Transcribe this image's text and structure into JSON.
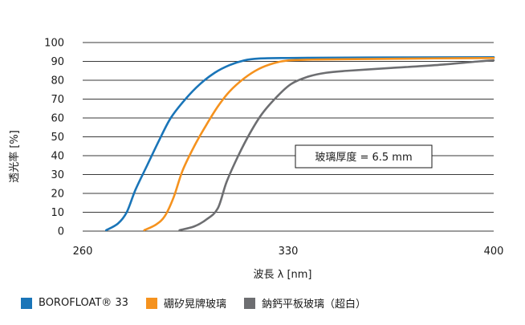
{
  "chart_data": {
    "type": "line",
    "xlabel": "波長 λ [nm]",
    "ylabel": "透光率 [%]",
    "xlim": [
      260,
      400
    ],
    "ylim": [
      0,
      100
    ],
    "x_ticks": [
      260,
      330,
      400
    ],
    "y_ticks": [
      0,
      10,
      20,
      30,
      40,
      50,
      60,
      70,
      80,
      90,
      100
    ],
    "grid": "horizontal",
    "legend_position": "bottom",
    "annotation": "玻璃厚度 = 6.5 mm",
    "series": [
      {
        "name": "BOROFLOAT® 33",
        "color": "#1a75b8",
        "points": [
          [
            268,
            0.5
          ],
          [
            272,
            4
          ],
          [
            275,
            10
          ],
          [
            278,
            22
          ],
          [
            282,
            35
          ],
          [
            286,
            48
          ],
          [
            290,
            60
          ],
          [
            295,
            70
          ],
          [
            300,
            78
          ],
          [
            305,
            84
          ],
          [
            310,
            88
          ],
          [
            315,
            90.5
          ],
          [
            320,
            91.5
          ],
          [
            330,
            91.8
          ],
          [
            350,
            92
          ],
          [
            370,
            92.1
          ],
          [
            400,
            92.2
          ]
        ]
      },
      {
        "name": "硼矽晃牌玻璃",
        "color": "#f5921e",
        "points": [
          [
            281,
            0.5
          ],
          [
            285,
            3.5
          ],
          [
            288,
            8
          ],
          [
            291,
            18
          ],
          [
            294,
            32
          ],
          [
            298,
            45
          ],
          [
            302,
            56
          ],
          [
            306,
            66
          ],
          [
            310,
            74
          ],
          [
            315,
            81
          ],
          [
            320,
            86
          ],
          [
            325,
            89
          ],
          [
            330,
            90.5
          ],
          [
            340,
            91
          ],
          [
            360,
            91.3
          ],
          [
            380,
            91.6
          ],
          [
            400,
            91.8
          ]
        ]
      },
      {
        "name": "鈉鈣平板玻璃（超白）",
        "color": "#6d6e71",
        "points": [
          [
            293,
            0.5
          ],
          [
            298,
            2.5
          ],
          [
            302,
            6
          ],
          [
            306,
            12
          ],
          [
            309,
            26
          ],
          [
            313,
            40
          ],
          [
            317,
            52
          ],
          [
            321,
            62
          ],
          [
            326,
            71
          ],
          [
            331,
            78
          ],
          [
            337,
            82
          ],
          [
            343,
            84
          ],
          [
            350,
            85
          ],
          [
            365,
            86.5
          ],
          [
            380,
            88
          ],
          [
            395,
            90
          ],
          [
            400,
            90.5
          ]
        ]
      }
    ]
  }
}
